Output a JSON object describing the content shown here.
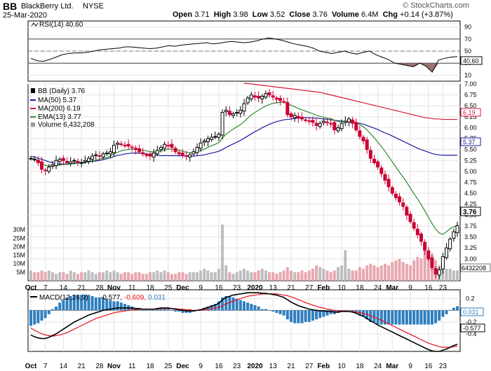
{
  "header": {
    "ticker": "BB",
    "company": "BlackBerry Ltd.",
    "exchange": "NYSE",
    "date": "25-Mar-2020",
    "watermark": "© StockCharts.com",
    "ohlc": {
      "open_label": "Open",
      "open": "3.71",
      "high_label": "High",
      "high": "3.98",
      "low_label": "Low",
      "low": "3.52",
      "close_label": "Close",
      "close": "3.76",
      "volume_label": "Volume",
      "volume": "6.4M",
      "chg_label": "Chg",
      "chg": "+0.14 (+3.87%)"
    }
  },
  "colors": {
    "up": "#000000",
    "down": "#cc0033",
    "ma50": "#1a1aa0",
    "ma200": "#d9173a",
    "ema13": "#2e8b2e",
    "macd": "#000000",
    "signal": "#e8101a",
    "hist": "#2f7fbf",
    "rsi_fill": "#8b5a5a",
    "grid": "#e3e3e3",
    "vol_up": "#bdbdbd",
    "vol_down": "#e8a7b0"
  },
  "chart_data": [
    {
      "type": "line",
      "panel": "rsi",
      "label": "RSI(14)",
      "value_label": "40.60",
      "ylim": [
        0,
        100
      ],
      "yticks": [
        90,
        70,
        50,
        30,
        10
      ],
      "reference_lines": [
        70,
        30
      ],
      "values": [
        38,
        34,
        33,
        36,
        40,
        44,
        46,
        47,
        47,
        48,
        50,
        52,
        53,
        54,
        55,
        57,
        57,
        56,
        55,
        54,
        55,
        57,
        59,
        58,
        60,
        61,
        62,
        63,
        64,
        62,
        63,
        65,
        66,
        65,
        64,
        65,
        67,
        70,
        72,
        70,
        68,
        65,
        62,
        60,
        58,
        55,
        50,
        48,
        46,
        48,
        50,
        47,
        45,
        48,
        50,
        44,
        40,
        36,
        30,
        28,
        26,
        24,
        30,
        25,
        15,
        35,
        38,
        40,
        41
      ]
    },
    {
      "type": "candlestick",
      "panel": "price",
      "label": "BB (Daily)",
      "value_label": "3.76",
      "ylim": [
        2.5,
        7.0
      ],
      "yticks": [
        7.0,
        6.75,
        6.5,
        6.25,
        6.0,
        5.75,
        5.5,
        5.25,
        5.0,
        4.75,
        4.5,
        4.25,
        4.0,
        3.75,
        3.5,
        3.25,
        3.0
      ],
      "x_labels": [
        "Oct",
        "7",
        "14",
        "21",
        "28",
        "Nov",
        "11",
        "18",
        "25",
        "Dec",
        "9",
        "16",
        "23",
        "2020",
        "13",
        "21",
        "27",
        "Feb",
        "10",
        "18",
        "24",
        "Mar",
        "9",
        "16",
        "23"
      ],
      "x_label_index": [
        0,
        4,
        9,
        14,
        19,
        23,
        28,
        33,
        38,
        42,
        47,
        52,
        57,
        62,
        67,
        72,
        77,
        81,
        86,
        91,
        96,
        100,
        105,
        110,
        114
      ],
      "closes": [
        5.3,
        5.28,
        5.2,
        5.05,
        5.02,
        5.1,
        5.15,
        5.25,
        5.28,
        5.25,
        5.2,
        5.22,
        5.25,
        5.22,
        5.2,
        5.25,
        5.3,
        5.35,
        5.38,
        5.35,
        5.4,
        5.42,
        5.45,
        5.6,
        5.65,
        5.62,
        5.6,
        5.58,
        5.55,
        5.5,
        5.45,
        5.4,
        5.38,
        5.35,
        5.42,
        5.48,
        5.55,
        5.62,
        5.6,
        5.55,
        5.45,
        5.4,
        5.38,
        5.35,
        5.38,
        5.45,
        5.55,
        5.65,
        5.7,
        5.75,
        5.78,
        5.8,
        5.85,
        6.35,
        6.4,
        6.3,
        6.32,
        6.35,
        6.4,
        6.55,
        6.68,
        6.75,
        6.7,
        6.68,
        6.72,
        6.78,
        6.75,
        6.7,
        6.65,
        6.62,
        6.6,
        6.3,
        6.25,
        6.28,
        6.22,
        6.2,
        6.18,
        6.15,
        6.12,
        6.05,
        6.1,
        6.15,
        6.12,
        6.1,
        5.95,
        6.0,
        6.1,
        6.15,
        6.2,
        6.1,
        5.95,
        5.8,
        5.7,
        5.5,
        5.3,
        5.2,
        5.1,
        4.95,
        4.8,
        4.65,
        4.5,
        4.4,
        4.3,
        4.2,
        4.0,
        3.85,
        3.7,
        3.55,
        3.4,
        3.2,
        3.0,
        2.8,
        2.65,
        2.75,
        3.05,
        3.25,
        3.45,
        3.62,
        3.76
      ],
      "ma50": [
        5.35,
        5.33,
        5.3,
        5.28,
        5.25,
        5.22,
        5.2,
        5.18,
        5.17,
        5.17,
        5.17,
        5.18,
        5.19,
        5.2,
        5.2,
        5.21,
        5.22,
        5.23,
        5.24,
        5.25,
        5.27,
        5.29,
        5.31,
        5.34,
        5.37,
        5.38,
        5.4,
        5.41,
        5.42,
        5.42,
        5.42,
        5.41,
        5.4,
        5.39,
        5.38,
        5.37,
        5.36,
        5.36,
        5.36,
        5.36,
        5.36,
        5.36,
        5.36,
        5.35,
        5.34,
        5.35,
        5.36,
        5.37,
        5.38,
        5.4,
        5.42,
        5.44,
        5.46,
        5.5,
        5.55,
        5.59,
        5.63,
        5.67,
        5.71,
        5.76,
        5.81,
        5.86,
        5.91,
        5.95,
        6.0,
        6.04,
        6.08,
        6.11,
        6.14,
        6.16,
        6.18,
        6.19,
        6.2,
        6.21,
        6.22,
        6.23,
        6.23,
        6.23,
        6.22,
        6.22,
        6.21,
        6.2,
        6.19,
        6.18,
        6.17,
        6.16,
        6.15,
        6.14,
        6.13,
        6.12,
        6.11,
        6.1,
        6.08,
        6.05,
        6.02,
        5.99,
        5.96,
        5.92,
        5.88,
        5.85,
        5.81,
        5.77,
        5.73,
        5.69,
        5.65,
        5.61,
        5.57,
        5.53,
        5.5,
        5.47,
        5.44,
        5.41,
        5.39,
        5.38,
        5.37,
        5.37,
        5.37,
        5.37,
        5.37
      ],
      "ma200": [
        null,
        null,
        null,
        null,
        null,
        null,
        null,
        null,
        null,
        null,
        null,
        null,
        null,
        null,
        null,
        null,
        null,
        null,
        null,
        null,
        null,
        null,
        null,
        null,
        null,
        null,
        null,
        null,
        null,
        null,
        null,
        null,
        null,
        null,
        null,
        null,
        null,
        null,
        null,
        null,
        null,
        null,
        null,
        null,
        null,
        null,
        null,
        null,
        null,
        null,
        null,
        null,
        null,
        null,
        null,
        null,
        null,
        null,
        null,
        7.02,
        7.01,
        7.0,
        6.99,
        6.98,
        6.97,
        6.96,
        6.95,
        6.94,
        6.93,
        6.92,
        6.91,
        6.9,
        6.89,
        6.88,
        6.87,
        6.86,
        6.85,
        6.84,
        6.83,
        6.82,
        6.81,
        6.79,
        6.77,
        6.75,
        6.73,
        6.71,
        6.69,
        6.67,
        6.65,
        6.63,
        6.61,
        6.59,
        6.57,
        6.55,
        6.53,
        6.51,
        6.49,
        6.47,
        6.45,
        6.43,
        6.41,
        6.39,
        6.37,
        6.35,
        6.33,
        6.31,
        6.29,
        6.27,
        6.25,
        6.23,
        6.22,
        6.21,
        6.2,
        6.2,
        6.19,
        6.19,
        6.19,
        6.19,
        6.19
      ],
      "ema13": [
        5.3,
        5.28,
        5.24,
        5.18,
        5.14,
        5.12,
        5.12,
        5.14,
        5.15,
        5.16,
        5.16,
        5.17,
        5.18,
        5.19,
        5.19,
        5.2,
        5.22,
        5.24,
        5.26,
        5.28,
        5.3,
        5.32,
        5.35,
        5.4,
        5.44,
        5.47,
        5.49,
        5.5,
        5.51,
        5.51,
        5.5,
        5.48,
        5.47,
        5.45,
        5.45,
        5.45,
        5.47,
        5.49,
        5.51,
        5.51,
        5.5,
        5.48,
        5.46,
        5.44,
        5.43,
        5.43,
        5.45,
        5.48,
        5.51,
        5.55,
        5.59,
        5.62,
        5.66,
        5.76,
        5.85,
        5.91,
        5.97,
        6.02,
        6.07,
        6.14,
        6.22,
        6.29,
        6.35,
        6.4,
        6.45,
        6.5,
        6.53,
        6.56,
        6.57,
        6.58,
        6.59,
        6.55,
        6.51,
        6.48,
        6.44,
        6.41,
        6.38,
        6.35,
        6.32,
        6.28,
        6.26,
        6.24,
        6.22,
        6.21,
        6.17,
        6.14,
        6.14,
        6.14,
        6.15,
        6.14,
        6.12,
        6.07,
        6.02,
        5.95,
        5.86,
        5.77,
        5.67,
        5.57,
        5.46,
        5.34,
        5.22,
        5.1,
        4.98,
        4.87,
        4.75,
        4.62,
        4.49,
        4.37,
        4.24,
        4.1,
        3.95,
        3.81,
        3.68,
        3.59,
        3.56,
        3.62,
        3.69,
        3.73,
        3.77
      ]
    },
    {
      "type": "bar",
      "panel": "volume",
      "label": "Volume 6,432,208",
      "value_label": "6432208",
      "ylim": [
        0,
        35
      ],
      "unit": "M",
      "yticks": [
        30,
        25,
        20,
        15,
        10,
        5
      ],
      "ytick_labels": [
        "30M",
        "25M",
        "20M",
        "15M",
        "10M",
        "5M"
      ],
      "values": [
        6,
        5,
        5,
        6,
        5,
        6,
        5,
        4,
        5,
        5,
        4,
        6,
        5,
        4,
        5,
        5,
        6,
        5,
        4,
        5,
        5,
        6,
        5,
        6,
        5,
        4,
        5,
        5,
        4,
        5,
        5,
        4,
        4,
        5,
        5,
        6,
        5,
        6,
        5,
        4,
        4,
        5,
        5,
        4,
        5,
        5,
        5,
        6,
        7,
        6,
        5,
        5,
        7,
        33,
        9,
        5,
        4,
        5,
        6,
        7,
        6,
        5,
        5,
        6,
        7,
        6,
        5,
        5,
        4,
        5,
        6,
        8,
        6,
        5,
        5,
        6,
        5,
        6,
        7,
        9,
        8,
        7,
        6,
        5,
        6,
        8,
        9,
        18,
        7,
        6,
        6,
        8,
        7,
        9,
        10,
        9,
        8,
        9,
        10,
        9,
        11,
        12,
        13,
        11,
        10,
        9,
        12,
        14,
        13,
        20,
        18,
        15,
        12,
        9,
        8,
        7,
        7,
        6,
        6
      ]
    },
    {
      "type": "line",
      "panel": "macd",
      "label": "MACD(12,26,9)",
      "macd_label": "-0.577",
      "signal_label": "-0.609",
      "hist_label": "0.031",
      "ylim": [
        -0.7,
        0.35
      ],
      "yticks": [
        0.2,
        0.0,
        -0.2,
        -0.4
      ],
      "x_labels": [
        "Oct",
        "7",
        "14",
        "21",
        "28",
        "Nov",
        "11",
        "18",
        "25",
        "Dec",
        "9",
        "16",
        "23",
        "2020",
        "13",
        "21",
        "27",
        "Feb",
        "10",
        "18",
        "24",
        "Mar",
        "9",
        "16",
        "23"
      ],
      "macd": [
        -0.42,
        -0.45,
        -0.47,
        -0.48,
        -0.48,
        -0.46,
        -0.43,
        -0.4,
        -0.36,
        -0.32,
        -0.28,
        -0.24,
        -0.2,
        -0.17,
        -0.14,
        -0.11,
        -0.08,
        -0.06,
        -0.04,
        -0.02,
        0.0,
        0.01,
        0.02,
        0.03,
        0.04,
        0.04,
        0.04,
        0.04,
        0.04,
        0.03,
        0.03,
        0.02,
        0.02,
        0.02,
        0.02,
        0.03,
        0.04,
        0.04,
        0.04,
        0.03,
        0.02,
        0.01,
        0.0,
        -0.01,
        -0.01,
        -0.01,
        0.0,
        0.01,
        0.03,
        0.05,
        0.07,
        0.09,
        0.12,
        0.18,
        0.22,
        0.24,
        0.26,
        0.27,
        0.28,
        0.29,
        0.3,
        0.3,
        0.3,
        0.3,
        0.29,
        0.29,
        0.28,
        0.27,
        0.26,
        0.24,
        0.22,
        0.18,
        0.14,
        0.11,
        0.08,
        0.06,
        0.04,
        0.02,
        0.01,
        0.0,
        -0.01,
        -0.01,
        -0.02,
        -0.02,
        -0.03,
        -0.03,
        -0.02,
        -0.02,
        -0.02,
        -0.03,
        -0.05,
        -0.08,
        -0.1,
        -0.14,
        -0.18,
        -0.21,
        -0.25,
        -0.28,
        -0.31,
        -0.34,
        -0.37,
        -0.4,
        -0.43,
        -0.46,
        -0.49,
        -0.52,
        -0.55,
        -0.58,
        -0.61,
        -0.64,
        -0.67,
        -0.69,
        -0.7,
        -0.7,
        -0.68,
        -0.66,
        -0.63,
        -0.6,
        -0.577
      ],
      "signal": [
        -0.3,
        -0.34,
        -0.37,
        -0.4,
        -0.42,
        -0.43,
        -0.44,
        -0.43,
        -0.42,
        -0.4,
        -0.38,
        -0.35,
        -0.32,
        -0.29,
        -0.26,
        -0.23,
        -0.2,
        -0.17,
        -0.14,
        -0.12,
        -0.1,
        -0.08,
        -0.06,
        -0.04,
        -0.03,
        -0.02,
        -0.01,
        0.0,
        0.01,
        0.01,
        0.02,
        0.02,
        0.02,
        0.02,
        0.02,
        0.02,
        0.03,
        0.03,
        0.03,
        0.03,
        0.03,
        0.02,
        0.02,
        0.01,
        0.01,
        0.0,
        0.0,
        0.0,
        0.01,
        0.02,
        0.03,
        0.04,
        0.05,
        0.08,
        0.11,
        0.13,
        0.16,
        0.18,
        0.2,
        0.22,
        0.24,
        0.25,
        0.26,
        0.27,
        0.28,
        0.28,
        0.28,
        0.28,
        0.28,
        0.27,
        0.26,
        0.25,
        0.23,
        0.21,
        0.18,
        0.16,
        0.13,
        0.11,
        0.09,
        0.07,
        0.05,
        0.04,
        0.02,
        0.01,
        0.0,
        -0.01,
        -0.01,
        -0.01,
        -0.02,
        -0.02,
        -0.03,
        -0.04,
        -0.05,
        -0.07,
        -0.09,
        -0.12,
        -0.14,
        -0.17,
        -0.2,
        -0.23,
        -0.26,
        -0.29,
        -0.32,
        -0.35,
        -0.38,
        -0.41,
        -0.44,
        -0.47,
        -0.5,
        -0.53,
        -0.56,
        -0.58,
        -0.6,
        -0.62,
        -0.63,
        -0.63,
        -0.63,
        -0.62,
        -0.609
      ]
    }
  ],
  "legend": {
    "bb": "BB (Daily) 3.76",
    "ma50": "MA(50) 5.37",
    "ma200": "MA(200) 6.19",
    "ema13": "EMA(13) 3.77",
    "volume": "Volume 6,432,208",
    "rsi": "RSI(14) 40.60",
    "macd_name": "MACD(12,26,9)",
    "macd_val": "-0.577,",
    "signal_val": "-0.609,",
    "hist_val": "0.031"
  },
  "tags": {
    "ma200": "6.19",
    "ma50": "5.37",
    "price": "3.76",
    "volume": "6432208",
    "rsi": "40.60",
    "hist": "0.031",
    "macd": "-0.577"
  }
}
